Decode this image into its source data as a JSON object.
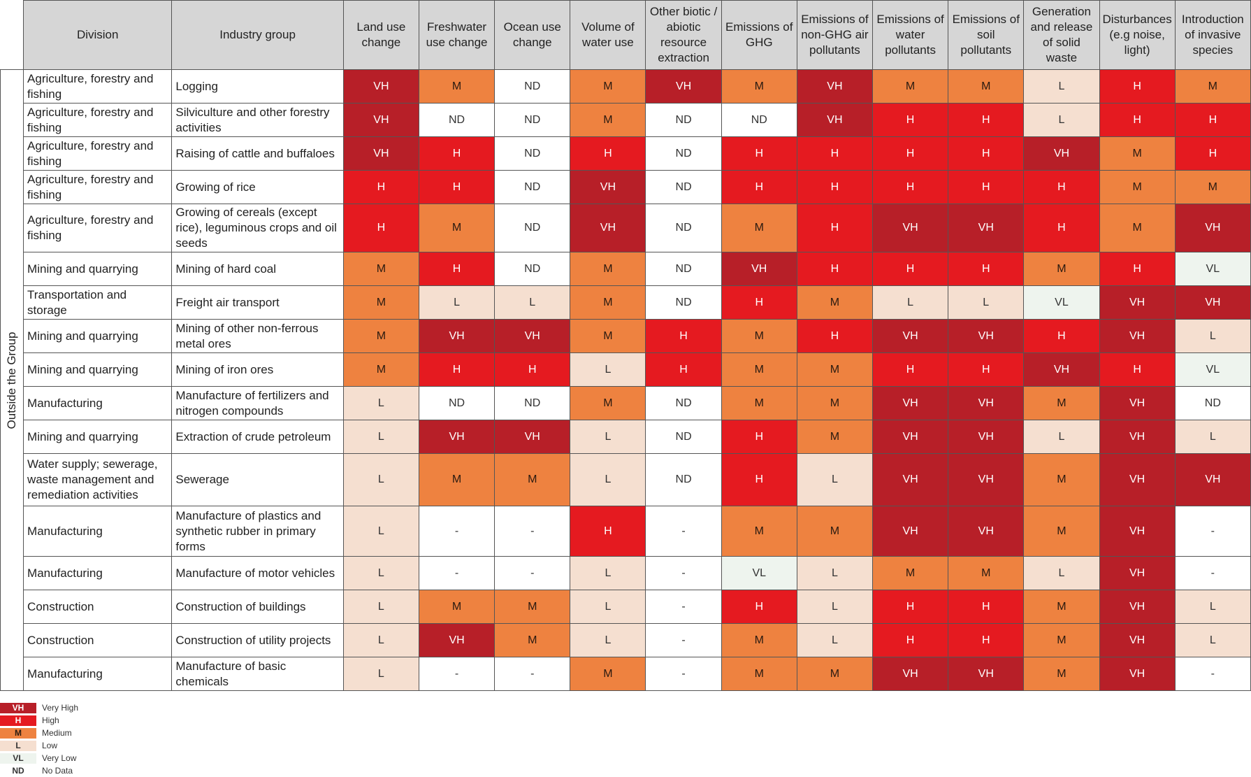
{
  "chart_data": {
    "type": "table",
    "side_label": "Outside the Group",
    "columns": [
      "Division",
      "Industry group",
      "Land use change",
      "Freshwater use change",
      "Ocean use change",
      "Volume of water use",
      "Other biotic / abiotic resource extraction",
      "Emissions of GHG",
      "Emissions of non-GHG air pollutants",
      "Emissions of water pollutants",
      "Emissions of soil pollutants",
      "Generation and release of solid waste",
      "Disturbances (e.g noise, light)",
      "Introduction of invasive species"
    ],
    "rows": [
      {
        "division": "Agriculture, forestry and fishing",
        "industry": "Logging",
        "values": [
          "VH",
          "M",
          "ND",
          "M",
          "VH",
          "M",
          "VH",
          "M",
          "M",
          "L",
          "H",
          "M"
        ]
      },
      {
        "division": "Agriculture, forestry and fishing",
        "industry": "Silviculture and other forestry activities",
        "values": [
          "VH",
          "ND",
          "ND",
          "M",
          "ND",
          "ND",
          "VH",
          "H",
          "H",
          "L",
          "H",
          "H"
        ]
      },
      {
        "division": "Agriculture, forestry and fishing",
        "industry": "Raising of cattle and buffaloes",
        "values": [
          "VH",
          "H",
          "ND",
          "H",
          "ND",
          "H",
          "H",
          "H",
          "H",
          "VH",
          "M",
          "H"
        ]
      },
      {
        "division": "Agriculture, forestry and fishing",
        "industry": "Growing of rice",
        "values": [
          "H",
          "H",
          "ND",
          "VH",
          "ND",
          "H",
          "H",
          "H",
          "H",
          "H",
          "M",
          "M"
        ]
      },
      {
        "division": "Agriculture, forestry and fishing",
        "industry": "Growing of cereals (except rice), leguminous crops and oil seeds",
        "values": [
          "H",
          "M",
          "ND",
          "VH",
          "ND",
          "M",
          "H",
          "VH",
          "VH",
          "H",
          "M",
          "VH"
        ]
      },
      {
        "division": "Mining and quarrying",
        "industry": "Mining of hard coal",
        "values": [
          "M",
          "H",
          "ND",
          "M",
          "ND",
          "VH",
          "H",
          "H",
          "H",
          "M",
          "H",
          "VL"
        ]
      },
      {
        "division": "Transportation and storage",
        "industry": "Freight air transport",
        "values": [
          "M",
          "L",
          "L",
          "M",
          "ND",
          "H",
          "M",
          "L",
          "L",
          "VL",
          "VH",
          "VH"
        ]
      },
      {
        "division": "Mining and quarrying",
        "industry": "Mining of other non-ferrous metal ores",
        "values": [
          "M",
          "VH",
          "VH",
          "M",
          "H",
          "M",
          "H",
          "VH",
          "VH",
          "H",
          "VH",
          "L"
        ]
      },
      {
        "division": "Mining and quarrying",
        "industry": "Mining of iron ores",
        "values": [
          "M",
          "H",
          "H",
          "L",
          "H",
          "M",
          "M",
          "H",
          "H",
          "VH",
          "H",
          "VL"
        ]
      },
      {
        "division": "Manufacturing",
        "industry": "Manufacture of fertilizers and nitrogen compounds",
        "values": [
          "L",
          "ND",
          "ND",
          "M",
          "ND",
          "M",
          "M",
          "VH",
          "VH",
          "M",
          "VH",
          "ND"
        ]
      },
      {
        "division": "Mining and quarrying",
        "industry": "Extraction of crude petroleum",
        "values": [
          "L",
          "VH",
          "VH",
          "L",
          "ND",
          "H",
          "M",
          "VH",
          "VH",
          "L",
          "VH",
          "L"
        ]
      },
      {
        "division": "Water supply; sewerage, waste management and remediation activities",
        "industry": "Sewerage",
        "values": [
          "L",
          "M",
          "M",
          "L",
          "ND",
          "H",
          "L",
          "VH",
          "VH",
          "M",
          "VH",
          "VH"
        ]
      },
      {
        "division": "Manufacturing",
        "industry": "Manufacture of plastics and synthetic rubber in primary forms",
        "values": [
          "L",
          "-",
          "-",
          "H",
          "-",
          "M",
          "M",
          "VH",
          "VH",
          "M",
          "VH",
          "-"
        ]
      },
      {
        "division": "Manufacturing",
        "industry": "Manufacture of motor vehicles",
        "values": [
          "L",
          "-",
          "-",
          "L",
          "-",
          "VL",
          "L",
          "M",
          "M",
          "L",
          "VH",
          "-"
        ]
      },
      {
        "division": "Construction",
        "industry": "Construction of buildings",
        "values": [
          "L",
          "M",
          "M",
          "L",
          "-",
          "H",
          "L",
          "H",
          "H",
          "M",
          "VH",
          "L"
        ]
      },
      {
        "division": "Construction",
        "industry": "Construction of utility projects",
        "values": [
          "L",
          "VH",
          "M",
          "L",
          "-",
          "M",
          "L",
          "H",
          "H",
          "M",
          "VH",
          "L"
        ]
      },
      {
        "division": "Manufacturing",
        "industry": "Manufacture of basic chemicals",
        "values": [
          "L",
          "-",
          "-",
          "M",
          "-",
          "M",
          "M",
          "VH",
          "VH",
          "M",
          "VH",
          "-"
        ]
      }
    ],
    "legend": [
      {
        "key": "VH",
        "label": "Very High"
      },
      {
        "key": "H",
        "label": "High"
      },
      {
        "key": "M",
        "label": "Medium"
      },
      {
        "key": "L",
        "label": "Low"
      },
      {
        "key": "VL",
        "label": "Very Low"
      },
      {
        "key": "ND",
        "label": "No Data"
      }
    ],
    "colors": {
      "VH": "#b71f28",
      "H": "#e51a20",
      "M": "#ee8240",
      "L": "#f5dfd0",
      "VL": "#eef4ee",
      "ND": "#ffffff",
      "-": "#ffffff"
    }
  }
}
